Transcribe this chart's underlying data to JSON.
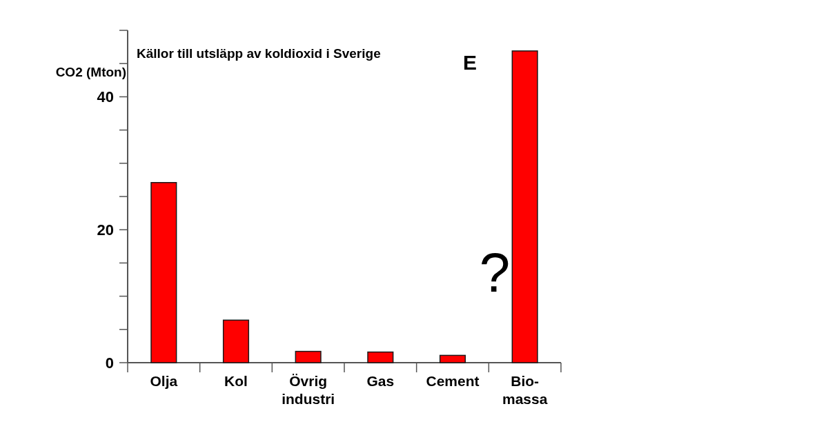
{
  "chart_data": {
    "type": "bar",
    "title": "Källor till utsläpp av koldioxid i Sverige",
    "ylabel": "CO2 (Mton)",
    "categories": [
      "Olja",
      "Kol",
      "Övrig\nindustri",
      "Gas",
      "Cement",
      "Bio-\nmassa"
    ],
    "values": [
      27.1,
      6.4,
      1.7,
      1.6,
      1.1,
      46.9
    ],
    "color": "#ff0000",
    "ylim": [
      0,
      50
    ],
    "yticks": [
      0,
      {
        "value": 5,
        "label": null
      },
      {
        "value": 10,
        "label": null
      },
      {
        "value": 15,
        "label": null
      },
      20,
      {
        "value": 25,
        "label": null
      },
      {
        "value": 30,
        "label": null
      },
      {
        "value": 35,
        "label": null
      },
      40,
      {
        "value": 45,
        "label": null
      },
      {
        "value": 50,
        "label": null
      }
    ],
    "annotations": [
      "E",
      "?"
    ]
  }
}
